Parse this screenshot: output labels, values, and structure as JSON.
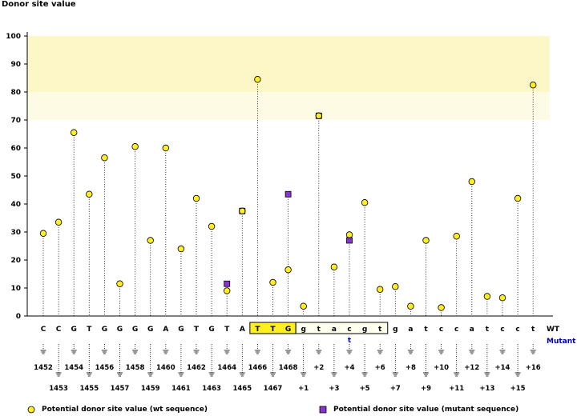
{
  "chart_data": {
    "type": "scatter",
    "title": "Donor site value",
    "ylabel": "Donor site value",
    "ylim": [
      0,
      100
    ],
    "y_ticks": [
      0,
      10,
      20,
      30,
      40,
      50,
      60,
      70,
      80,
      90,
      100
    ],
    "highlight_bands": [
      {
        "from": 80,
        "to": 100,
        "color": "#fdf6c6"
      },
      {
        "from": 70,
        "to": 80,
        "color": "#fefbe5"
      }
    ],
    "positions": [
      {
        "base": "C",
        "label": "1452",
        "wt": 29.5,
        "mutant": null,
        "exon_box": false
      },
      {
        "base": "C",
        "label": "1453",
        "wt": 33.5,
        "mutant": null,
        "exon_box": false
      },
      {
        "base": "G",
        "label": "1454",
        "wt": 65.5,
        "mutant": null,
        "exon_box": false
      },
      {
        "base": "T",
        "label": "1455",
        "wt": 43.5,
        "mutant": null,
        "exon_box": false
      },
      {
        "base": "G",
        "label": "1456",
        "wt": 56.5,
        "mutant": null,
        "exon_box": false
      },
      {
        "base": "G",
        "label": "1457",
        "wt": 11.5,
        "mutant": null,
        "exon_box": false
      },
      {
        "base": "G",
        "label": "1458",
        "wt": 60.5,
        "mutant": null,
        "exon_box": false
      },
      {
        "base": "G",
        "label": "1459",
        "wt": 27.0,
        "mutant": null,
        "exon_box": false
      },
      {
        "base": "A",
        "label": "1460",
        "wt": 60.0,
        "mutant": null,
        "exon_box": false
      },
      {
        "base": "G",
        "label": "1461",
        "wt": 24.0,
        "mutant": null,
        "exon_box": false
      },
      {
        "base": "T",
        "label": "1462",
        "wt": 42.0,
        "mutant": null,
        "exon_box": false
      },
      {
        "base": "G",
        "label": "1463",
        "wt": 32.0,
        "mutant": null,
        "exon_box": false
      },
      {
        "base": "T",
        "label": "1464",
        "wt": 9.0,
        "mutant": 11.5,
        "exon_box": false
      },
      {
        "base": "A",
        "label": "1465",
        "wt": 37.5,
        "mutant": 37.5,
        "exon_box": false
      },
      {
        "base": "T",
        "label": "1466",
        "wt": 84.5,
        "mutant": null,
        "exon_box": true
      },
      {
        "base": "T",
        "label": "1467",
        "wt": 12.0,
        "mutant": null,
        "exon_box": true
      },
      {
        "base": "G",
        "label": "1468",
        "wt": 16.5,
        "mutant": 43.5,
        "exon_box": true
      },
      {
        "base": "g",
        "label": "+1",
        "wt": 3.5,
        "mutant": null,
        "exon_box": false
      },
      {
        "base": "t",
        "label": "+2",
        "wt": 71.5,
        "mutant": 71.5,
        "exon_box": false
      },
      {
        "base": "a",
        "label": "+3",
        "wt": 17.5,
        "mutant": null,
        "exon_box": false
      },
      {
        "base": "c",
        "label": "+4",
        "wt": 29.0,
        "mutant": 27.0,
        "exon_box": false,
        "mutant_base": "t"
      },
      {
        "base": "g",
        "label": "+5",
        "wt": 40.5,
        "mutant": null,
        "exon_box": false
      },
      {
        "base": "t",
        "label": "+6",
        "wt": 9.5,
        "mutant": null,
        "exon_box": false
      },
      {
        "base": "g",
        "label": "+7",
        "wt": 10.5,
        "mutant": null,
        "exon_box": false
      },
      {
        "base": "a",
        "label": "+8",
        "wt": 3.5,
        "mutant": null,
        "exon_box": false
      },
      {
        "base": "t",
        "label": "+9",
        "wt": 27.0,
        "mutant": null,
        "exon_box": false
      },
      {
        "base": "c",
        "label": "+10",
        "wt": 3.0,
        "mutant": null,
        "exon_box": false
      },
      {
        "base": "c",
        "label": "+11",
        "wt": 28.5,
        "mutant": null,
        "exon_box": false
      },
      {
        "base": "a",
        "label": "+12",
        "wt": 48.0,
        "mutant": null,
        "exon_box": false
      },
      {
        "base": "t",
        "label": "+13",
        "wt": 7.0,
        "mutant": null,
        "exon_box": false
      },
      {
        "base": "c",
        "label": "+14",
        "wt": 6.5,
        "mutant": null,
        "exon_box": false
      },
      {
        "base": "c",
        "label": "+15",
        "wt": 42.0,
        "mutant": null,
        "exon_box": false
      },
      {
        "base": "t",
        "label": "+16",
        "wt": 82.5,
        "mutant": null,
        "exon_box": false
      }
    ],
    "sequence_row_labels": {
      "wt": "WT",
      "mutant": "Mutant"
    },
    "legend": {
      "wt": "Potential donor site value (wt sequence)",
      "mutant": "Potential donor site value (mutant sequence)"
    },
    "colors": {
      "wt_marker": "#ffee22",
      "mutant_marker": "#8833cc",
      "exon_box": "#ffee22",
      "intron_box": "#ffffee",
      "mutant_text": "#0000aa"
    }
  }
}
